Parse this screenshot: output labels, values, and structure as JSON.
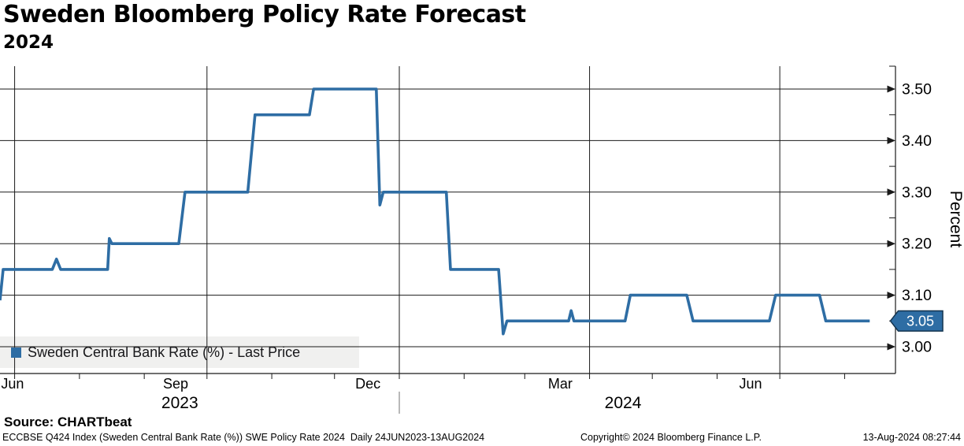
{
  "header": {
    "title": "Sweden Bloomberg Policy Rate Forecast",
    "subtitle": "2024"
  },
  "legend": {
    "label": "Sweden Central Bank Rate (%) - Last Price"
  },
  "footer": {
    "source": "Source: CHARTbeat",
    "description": "ECCBSE Q424 Index (Sweden Central Bank Rate (%)) SWE Policy Rate 2024  Daily 24JUN2023-13AUG2024",
    "copyright": "Copyright© 2024 Bloomberg Finance L.P.",
    "timestamp": "13-Aug-2024 08:27:44"
  },
  "colors": {
    "line": "#2e6da4",
    "badge_fill": "#2e6da4",
    "badge_border": "#14344f",
    "grid": "#1a1a1a",
    "legend_bg": "#f0f0ef",
    "year_separator": "#8a8a8a"
  },
  "chart_data": {
    "type": "line",
    "title": "Sweden Bloomberg Policy Rate Forecast 2024",
    "xlabel": "",
    "ylabel": "Percent",
    "x_start_date": "24JUN2023",
    "x_end_date": "13AUG2024",
    "ylim": [
      2.95,
      3.545
    ],
    "grid": true,
    "legend_position": "bottom-left",
    "last_price": "3.05",
    "last_price_value": 3.05,
    "y_axis": {
      "label": "Percent",
      "major_ticks": [
        3.0,
        3.1,
        3.2,
        3.3,
        3.4,
        3.5
      ],
      "major_tick_labels": [
        "3.00",
        "3.10",
        "3.20",
        "3.30",
        "3.40",
        "3.50"
      ],
      "minor_ticks": [
        3.05,
        3.15,
        3.25,
        3.35,
        3.45
      ]
    },
    "x_axis": {
      "unit": "days_since_24JUN2023",
      "month_tick_days": [
        7,
        38,
        69,
        99,
        130,
        160,
        191,
        222,
        251,
        282,
        312,
        343,
        373,
        404
      ],
      "gridline_days": [
        7,
        99,
        191,
        282,
        373
      ],
      "month_labels": [
        {
          "label": "Jun",
          "day": 6
        },
        {
          "label": "Sep",
          "day": 84
        },
        {
          "label": "Dec",
          "day": 176
        },
        {
          "label": "Mar",
          "day": 268
        },
        {
          "label": "Jun",
          "day": 359
        }
      ],
      "year_labels": [
        {
          "label": "2023",
          "day": 86
        },
        {
          "label": "2024",
          "day": 298
        }
      ],
      "year_separator_day": 191
    },
    "series": [
      {
        "name": "Sweden Central Bank Rate (%) - Last Price",
        "color": "#2e6da4",
        "points": [
          [
            0,
            3.09
          ],
          [
            1.5,
            3.15
          ],
          [
            25,
            3.15
          ],
          [
            27,
            3.17
          ],
          [
            29,
            3.15
          ],
          [
            51.5,
            3.15
          ],
          [
            52.3,
            3.21
          ],
          [
            53.5,
            3.2
          ],
          [
            85.5,
            3.2
          ],
          [
            88.5,
            3.3
          ],
          [
            118.5,
            3.3
          ],
          [
            122,
            3.45
          ],
          [
            148,
            3.45
          ],
          [
            150,
            3.5
          ],
          [
            180,
            3.5
          ],
          [
            181.7,
            3.275
          ],
          [
            183.3,
            3.3
          ],
          [
            213.5,
            3.3
          ],
          [
            215.5,
            3.15
          ],
          [
            238.5,
            3.15
          ],
          [
            240.7,
            3.025
          ],
          [
            242.5,
            3.05
          ],
          [
            272,
            3.05
          ],
          [
            273.2,
            3.07
          ],
          [
            274.5,
            3.05
          ],
          [
            299,
            3.05
          ],
          [
            301.5,
            3.1
          ],
          [
            328.5,
            3.1
          ],
          [
            331.5,
            3.05
          ],
          [
            368,
            3.05
          ],
          [
            371,
            3.1
          ],
          [
            392,
            3.1
          ],
          [
            395,
            3.05
          ],
          [
            416,
            3.05
          ]
        ]
      }
    ]
  }
}
